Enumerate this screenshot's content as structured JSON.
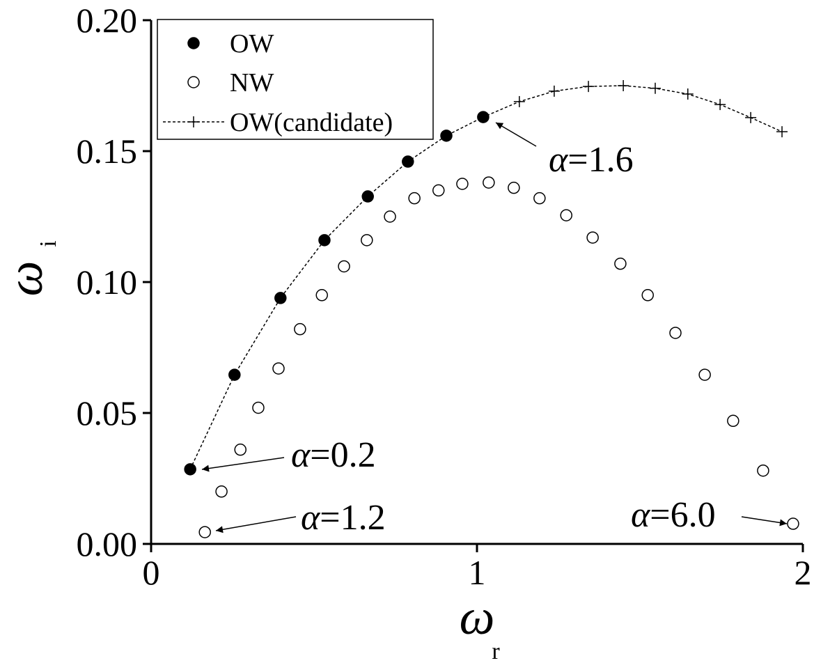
{
  "chart_data": {
    "type": "scatter",
    "x_label": {
      "symbol": "ω",
      "subscript": "r"
    },
    "y_label": {
      "symbol": "ω",
      "subscript": "i"
    },
    "xlim": [
      0,
      2
    ],
    "ylim": [
      0,
      0.2
    ],
    "xticks": [
      0,
      1,
      2
    ],
    "yticks": [
      {
        "value": 0,
        "label": "0.00"
      },
      0.05,
      {
        "value": 0.1,
        "label": "0.10"
      },
      0.15,
      {
        "value": 0.2,
        "label": "0.20"
      }
    ],
    "legend": "upper left",
    "series": [
      {
        "name": "OW",
        "color": "#000000",
        "marker": "filled-circle",
        "x": [
          0.12,
          0.256,
          0.397,
          0.532,
          0.665,
          0.788,
          0.906,
          1.019
        ],
        "values": [
          0.0285,
          0.0646,
          0.0939,
          0.116,
          0.1327,
          0.146,
          0.1559,
          0.163
        ]
      },
      {
        "name": "NW",
        "color": "#000000",
        "marker": "open-circle",
        "x": [
          0.165,
          0.216,
          0.274,
          0.329,
          0.391,
          0.457,
          0.524,
          0.592,
          0.662,
          0.733,
          0.808,
          0.882,
          0.955,
          1.036,
          1.113,
          1.192,
          1.274,
          1.355,
          1.44,
          1.524,
          1.609,
          1.699,
          1.786,
          1.878,
          1.97
        ],
        "values": [
          0.0045,
          0.02,
          0.036,
          0.052,
          0.067,
          0.082,
          0.095,
          0.106,
          0.116,
          0.125,
          0.132,
          0.135,
          0.1375,
          0.138,
          0.136,
          0.132,
          0.1255,
          0.117,
          0.107,
          0.095,
          0.0806,
          0.0646,
          0.047,
          0.028,
          0.0077
        ]
      },
      {
        "name": "OW(candidate)",
        "color": "#000000",
        "marker": "plus",
        "line": "dashed",
        "x": [
          0.12,
          0.256,
          0.397,
          0.532,
          0.665,
          0.788,
          0.906,
          1.019,
          1.13,
          1.237,
          1.342,
          1.449,
          1.547,
          1.647,
          1.746,
          1.84,
          1.936
        ],
        "values": [
          0.0285,
          0.0646,
          0.0939,
          0.116,
          0.1327,
          0.146,
          0.1559,
          0.163,
          0.1689,
          0.1729,
          0.1747,
          0.175,
          0.174,
          0.1718,
          0.1678,
          0.1628,
          0.1574
        ]
      }
    ],
    "annotations": [
      {
        "symbol": "α",
        "text": "=1.6"
      },
      {
        "symbol": "α",
        "text": "=0.2"
      },
      {
        "symbol": "α",
        "text": "=1.2"
      },
      {
        "symbol": "α",
        "text": "=6.0"
      }
    ]
  }
}
